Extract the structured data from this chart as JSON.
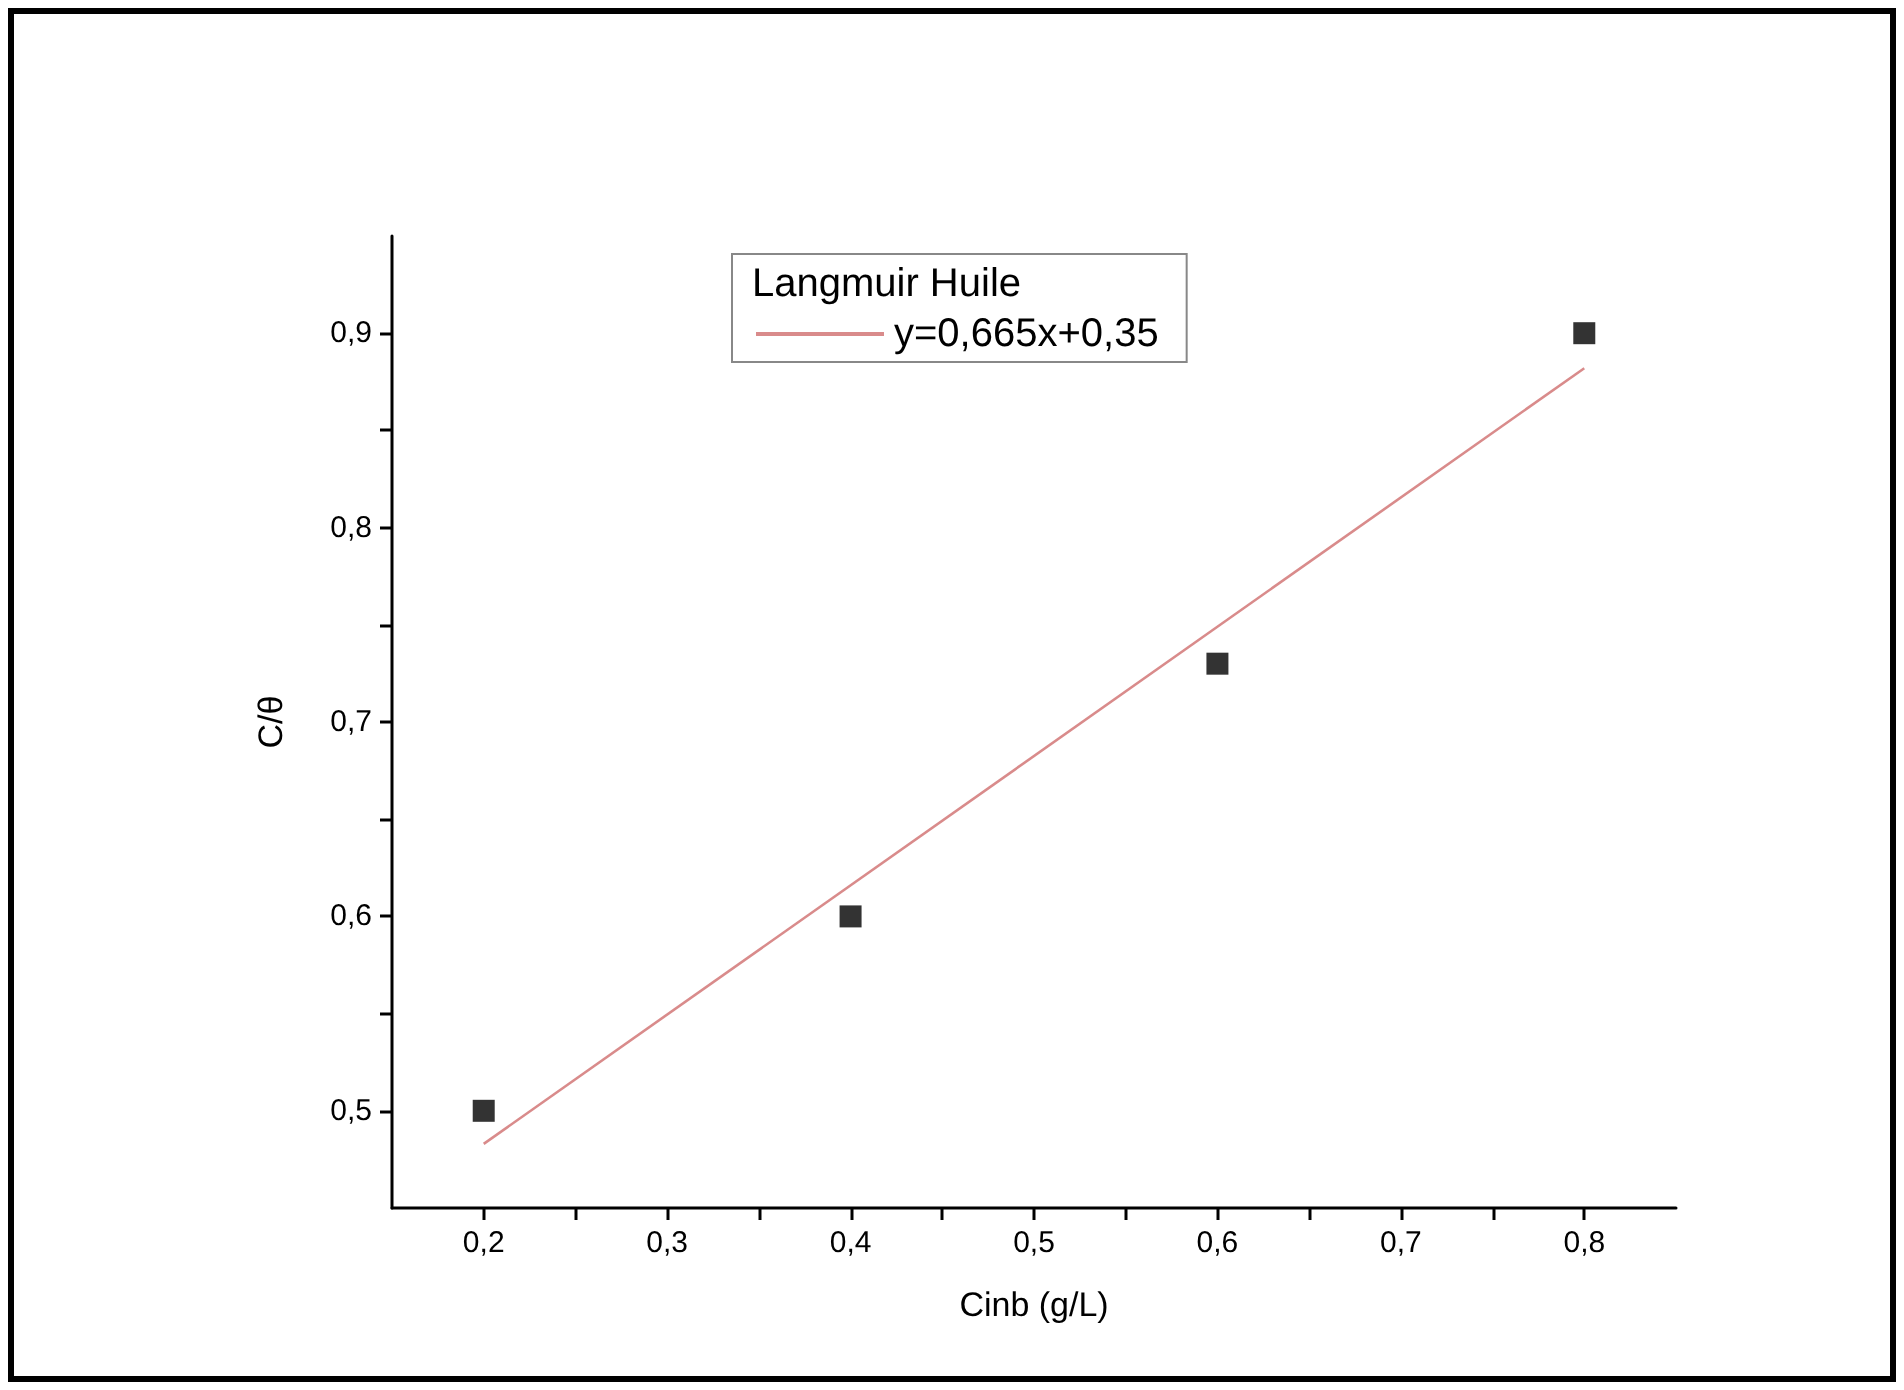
{
  "chart_data": {
    "type": "scatter",
    "xlabel": "Cinb (g/L)",
    "ylabel": "C/θ",
    "legend_title": "Langmuir Huile",
    "legend": "top",
    "marker": "square",
    "xlim": [
      0.15,
      0.85
    ],
    "ylim": [
      0.45,
      0.95
    ],
    "xticks": [
      {
        "value": 0.2,
        "label": "0,2"
      },
      {
        "value": 0.25,
        "label": null
      },
      {
        "value": 0.3,
        "label": "0,3"
      },
      {
        "value": 0.35,
        "label": null
      },
      {
        "value": 0.4,
        "label": "0,4"
      },
      {
        "value": 0.45,
        "label": null
      },
      {
        "value": 0.5,
        "label": "0,5"
      },
      {
        "value": 0.55,
        "label": null
      },
      {
        "value": 0.6,
        "label": "0,6"
      },
      {
        "value": 0.65,
        "label": null
      },
      {
        "value": 0.7,
        "label": "0,7"
      },
      {
        "value": 0.75,
        "label": null
      },
      {
        "value": 0.8,
        "label": "0,8"
      }
    ],
    "yticks": [
      {
        "value": 0.5,
        "label": "0,5"
      },
      {
        "value": 0.55,
        "label": null
      },
      {
        "value": 0.6,
        "label": "0,6"
      },
      {
        "value": 0.65,
        "label": null
      },
      {
        "value": 0.7,
        "label": "0,7"
      },
      {
        "value": 0.75,
        "label": null
      },
      {
        "value": 0.8,
        "label": "0,8"
      },
      {
        "value": 0.85,
        "label": null
      },
      {
        "value": 0.9,
        "label": "0,9"
      }
    ],
    "series": [
      {
        "color": "#000000",
        "x": [
          0.2,
          0.4,
          0.6,
          0.8
        ],
        "values": [
          0.5,
          0.6,
          0.73,
          0.9
        ]
      },
      {
        "type": "line",
        "name": "y=0,665x+0,35",
        "color": "#d98b8b",
        "marker": "none",
        "x": [
          0.2,
          0.8
        ],
        "values": [
          0.483,
          0.882
        ]
      }
    ]
  }
}
